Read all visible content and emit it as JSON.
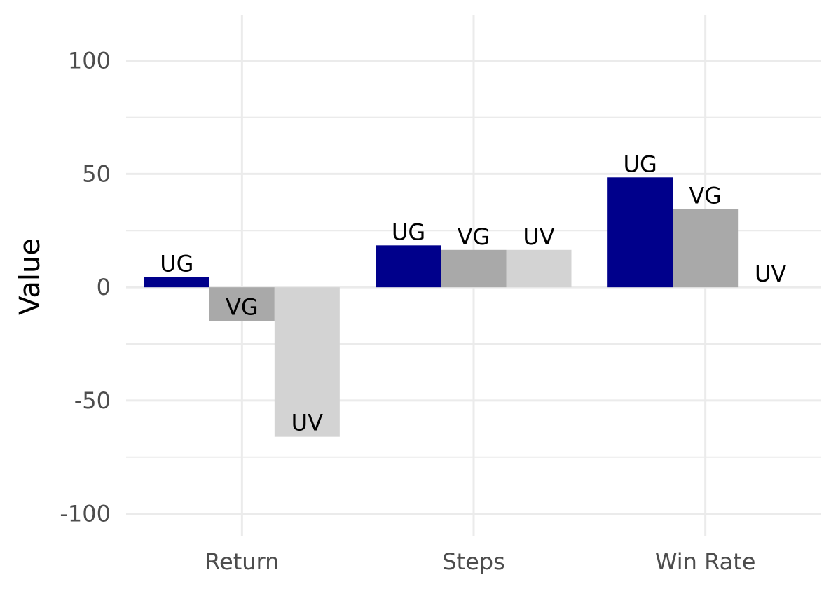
{
  "chart_data": {
    "type": "bar",
    "title": "",
    "xlabel": "",
    "ylabel": "Value",
    "categories": [
      "Return",
      "Steps",
      "Win Rate"
    ],
    "ylim": [
      -110,
      120
    ],
    "y_ticks": [
      -100,
      -50,
      0,
      50,
      100
    ],
    "y_tick_labels": [
      "-100",
      "-50",
      "0",
      "50",
      "100"
    ],
    "grid": true,
    "legend": "none",
    "series": [
      {
        "label": "UG",
        "color": "#00008b",
        "values": [
          4.5,
          18.5,
          48.5
        ]
      },
      {
        "label": "VG",
        "color": "#a9a9a9",
        "values": [
          -15,
          16.5,
          34.5
        ]
      },
      {
        "label": "UV",
        "color": "#d3d3d3",
        "values": [
          -66,
          16.5,
          0
        ]
      }
    ]
  }
}
